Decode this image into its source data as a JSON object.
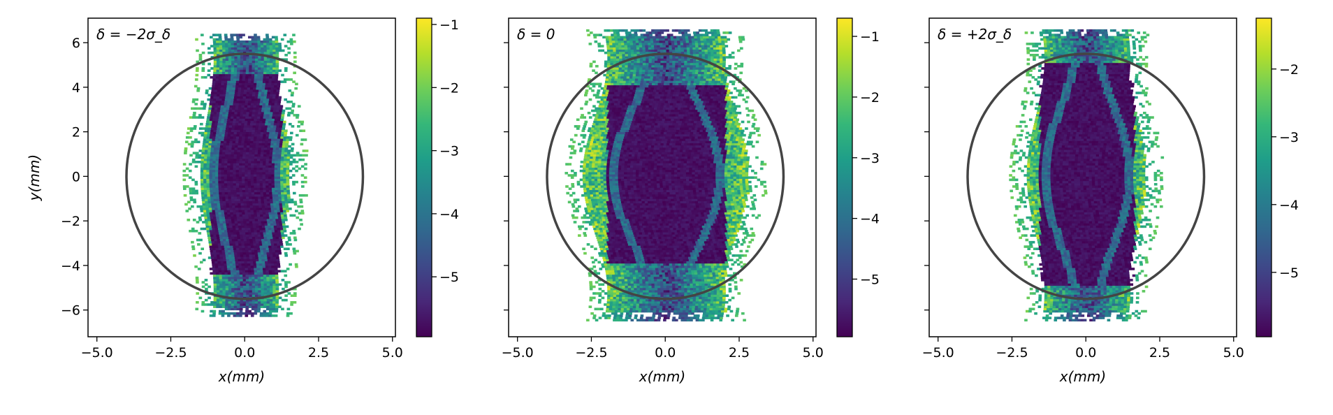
{
  "chart_data": [
    {
      "type": "heatmap",
      "annotation": "δ = −2σ_δ",
      "xlabel": "x(mm)",
      "ylabel": "y(mm)",
      "xlim": [
        -5.3,
        5.1
      ],
      "ylim": [
        -7.2,
        7.1
      ],
      "xticks": [
        "−5.0",
        "−2.5",
        "0.0",
        "2.5",
        "5.0"
      ],
      "yticks": [
        "6",
        "4",
        "2",
        "0",
        "−2",
        "−4",
        "−6"
      ],
      "colorbar": {
        "range": [
          -5.95,
          -0.9
        ],
        "ticks": [
          "−1",
          "−2",
          "−3",
          "−4",
          "−5"
        ],
        "tick_values": [
          -1,
          -2,
          -3,
          -4,
          -5
        ]
      },
      "aperture": {
        "shape": "ellipse",
        "cx": 0.0,
        "cy": 0.0,
        "rx": 4.0,
        "ry": 5.5
      },
      "distribution": {
        "half_width": 1.5,
        "y_extent": 6.3,
        "core_x": 1.2,
        "core_y": 4.5
      }
    },
    {
      "type": "heatmap",
      "annotation": "δ = 0",
      "xlabel": "x(mm)",
      "ylabel": "",
      "xlim": [
        -5.3,
        5.1
      ],
      "ylim": [
        -7.2,
        7.1
      ],
      "xticks": [
        "−5.0",
        "−2.5",
        "0.0",
        "2.5",
        "5.0"
      ],
      "yticks": [],
      "colorbar": {
        "range": [
          -5.95,
          -0.7
        ],
        "ticks": [
          "−1",
          "−2",
          "−3",
          "−4",
          "−5"
        ],
        "tick_values": [
          -1,
          -2,
          -3,
          -4,
          -5
        ]
      },
      "aperture": {
        "shape": "ellipse",
        "cx": 0.0,
        "cy": 0.0,
        "rx": 4.0,
        "ry": 5.5
      },
      "distribution": {
        "half_width": 2.8,
        "y_extent": 6.5,
        "core_x": 2.0,
        "core_y": 4.0
      }
    },
    {
      "type": "heatmap",
      "annotation": "δ = +2σ_δ",
      "xlabel": "x(mm)",
      "ylabel": "",
      "xlim": [
        -5.3,
        5.1
      ],
      "ylim": [
        -7.2,
        7.1
      ],
      "xticks": [
        "−5.0",
        "−2.5",
        "0.0",
        "2.5",
        "5.0"
      ],
      "yticks": [],
      "colorbar": {
        "range": [
          -5.95,
          -1.25
        ],
        "ticks": [
          "−2",
          "−3",
          "−4",
          "−5"
        ],
        "tick_values": [
          -2,
          -3,
          -4,
          -5
        ]
      },
      "aperture": {
        "shape": "ellipse",
        "cx": 0.0,
        "cy": 0.0,
        "rx": 4.0,
        "ry": 5.5
      },
      "distribution": {
        "half_width": 2.0,
        "y_extent": 6.5,
        "core_x": 1.6,
        "core_y": 5.0
      }
    }
  ]
}
